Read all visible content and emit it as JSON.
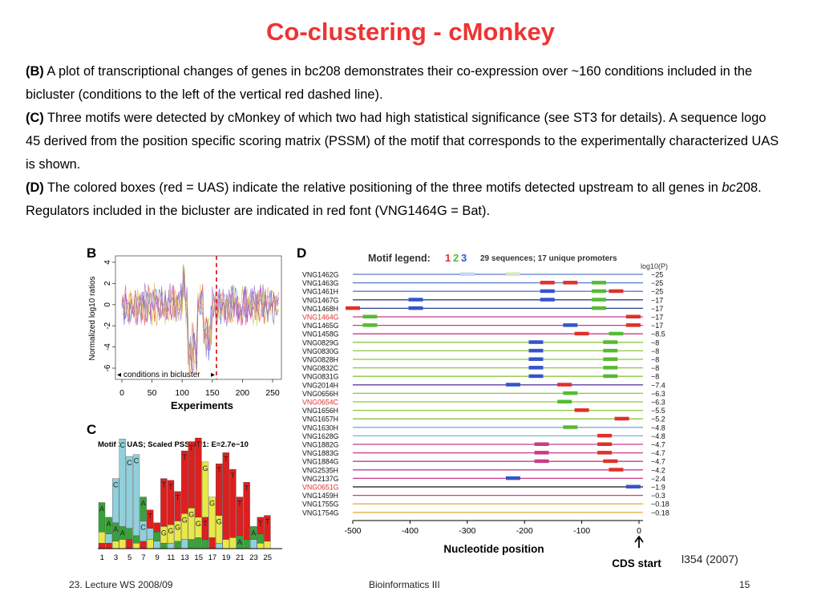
{
  "slide": {
    "title": "Co-clustering - cMonkey",
    "paragraphs": [
      {
        "tag": "(B)",
        "text_before": " A plot of transcriptional changes of genes in bc208 demonstrates their co-expression over ~160 conditions included in the bicluster (conditions to the left of the vertical red dashed line).",
        "italic": "",
        "text_after": ""
      },
      {
        "tag": "(C)",
        "text_before": " Three motifs were detected by cMonkey of which two had high statistical significance (see ST3 for details). A sequence logo 45 derived from the position specific scoring matrix (PSSM) of the motif that corresponds to the experimentally characterized UAS is shown.",
        "italic": "",
        "text_after": ""
      },
      {
        "tag": "(D)",
        "text_before": " The colored boxes (red = UAS) indicate the relative positioning of the three motifs detected upstream to all genes in ",
        "italic": "bc",
        "text_after": "208. Regulators included in the bicluster are indicated in red font (VNG1464G = Bat)."
      }
    ],
    "citation": "l354 (2007)",
    "footer": {
      "left": "23. Lecture WS 2008/09",
      "center": "Bioinformatics III",
      "right": "15"
    }
  },
  "panel_b": {
    "label": "B",
    "ylabel": "Normalized log10 ratios",
    "xlabel": "Experiments",
    "yticks": [
      "4",
      "2",
      "0",
      "-2",
      "-4",
      "-6"
    ],
    "xticks": [
      "0",
      "50",
      "100",
      "150",
      "200",
      "250"
    ],
    "annotation": "conditions in bicluster",
    "bicluster_boundary": 165
  },
  "panel_c": {
    "label": "C",
    "title": "Motif 1: UAS; Scaled PSSM #1: E=2.7e−10",
    "xticks": [
      "1",
      "3",
      "5",
      "7",
      "9",
      "11",
      "13",
      "15",
      "17",
      "19",
      "21",
      "23",
      "25"
    ]
  },
  "panel_d": {
    "label": "D",
    "legend_title": "Motif legend:",
    "legend_numbers": [
      "1",
      "2",
      "3"
    ],
    "legend_colors": [
      "#e0302a",
      "#55bb33",
      "#3355cc"
    ],
    "legend_info": "29 sequences; 17 unique promoters",
    "pvalue_header": "log10(P)",
    "xlabel": "Nucleotide position",
    "xticks": [
      "-500",
      "-400",
      "-300",
      "-200",
      "-100",
      "0"
    ],
    "cds_label": "CDS start",
    "genes": [
      {
        "name": "VNG1462G",
        "regulator": false,
        "p": "−25"
      },
      {
        "name": "VNG1463G",
        "regulator": false,
        "p": "−25"
      },
      {
        "name": "VNG1461H",
        "regulator": false,
        "p": "−25"
      },
      {
        "name": "VNG1467G",
        "regulator": false,
        "p": "−17"
      },
      {
        "name": "VNG1468H",
        "regulator": false,
        "p": "−17"
      },
      {
        "name": "VNG1464G",
        "regulator": true,
        "p": "−17"
      },
      {
        "name": "VNG1465G",
        "regulator": false,
        "p": "−17"
      },
      {
        "name": "VNG1458G",
        "regulator": false,
        "p": "−8.5"
      },
      {
        "name": "VNG0829G",
        "regulator": false,
        "p": "−8"
      },
      {
        "name": "VNG0830G",
        "regulator": false,
        "p": "−8"
      },
      {
        "name": "VNG0828H",
        "regulator": false,
        "p": "−8"
      },
      {
        "name": "VNG0832C",
        "regulator": false,
        "p": "−8"
      },
      {
        "name": "VNG0831G",
        "regulator": false,
        "p": "−8"
      },
      {
        "name": "VNG2014H",
        "regulator": false,
        "p": "−7.4"
      },
      {
        "name": "VNG0656H",
        "regulator": false,
        "p": "−6.3"
      },
      {
        "name": "VNG0654C",
        "regulator": true,
        "p": "−6.3"
      },
      {
        "name": "VNG1656H",
        "regulator": false,
        "p": "−5.5"
      },
      {
        "name": "VNG1657H",
        "regulator": false,
        "p": "−5.2"
      },
      {
        "name": "VNG1630H",
        "regulator": false,
        "p": "−4.8"
      },
      {
        "name": "VNG1628G",
        "regulator": false,
        "p": "−4.8"
      },
      {
        "name": "VNG1882G",
        "regulator": false,
        "p": "−4.7"
      },
      {
        "name": "VNG1883G",
        "regulator": false,
        "p": "−4.7"
      },
      {
        "name": "VNG1884G",
        "regulator": false,
        "p": "−4.7"
      },
      {
        "name": "VNG2535H",
        "regulator": false,
        "p": "−4.2"
      },
      {
        "name": "VNG2137G",
        "regulator": false,
        "p": "−2.4"
      },
      {
        "name": "VNG0651G",
        "regulator": true,
        "p": "−1.9"
      },
      {
        "name": "VNG1459H",
        "regulator": false,
        "p": "−0.3"
      },
      {
        "name": "VNG1755G",
        "regulator": false,
        "p": "−0.18"
      },
      {
        "name": "VNG1754G",
        "regulator": false,
        "p": "−0.18"
      }
    ]
  }
}
